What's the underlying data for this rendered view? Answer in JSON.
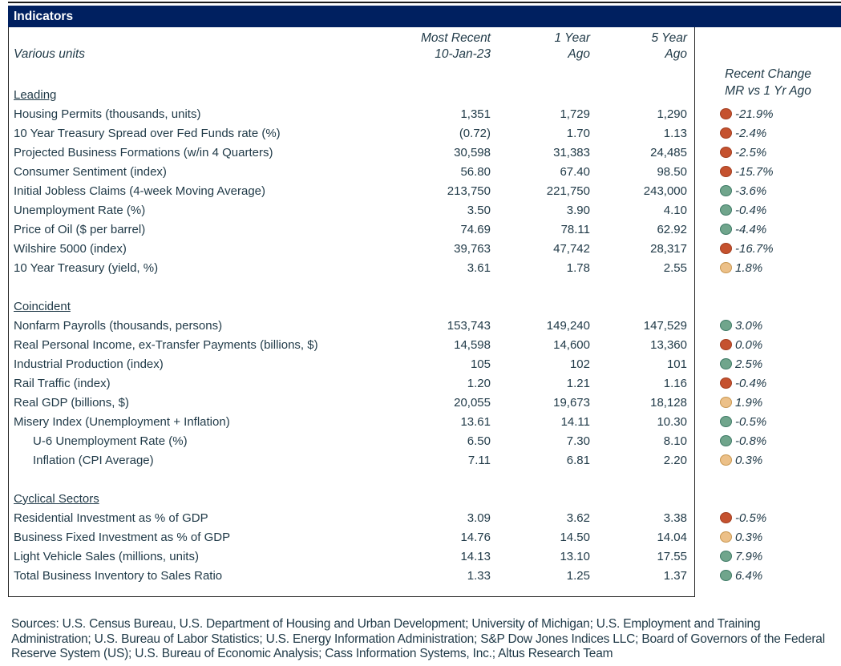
{
  "title": "Indicators",
  "header": {
    "units_label": "Various units",
    "col1_line1": "Most Recent",
    "col1_line2": "10-Jan-23",
    "col2_line1": "1 Year",
    "col2_line2": "Ago",
    "col3_line1": "5 Year",
    "col3_line2": "Ago",
    "change_line1": "Recent Change",
    "change_line2": "MR vs 1 Yr Ago"
  },
  "colors": {
    "header_bar": "#002060",
    "text": "#1f3947",
    "frame": "#262626"
  },
  "dot_colors": {
    "red": {
      "fill": "#c5522f",
      "stroke": "#a23d1f"
    },
    "green": {
      "fill": "#70a58c",
      "stroke": "#3e7a66"
    },
    "orange": {
      "fill": "#ecc088",
      "stroke": "#c8964f"
    }
  },
  "sections": [
    {
      "name": "Leading",
      "rows": [
        {
          "label": "Housing Permits (thousands, units)",
          "most_recent": "1,351",
          "one_year_ago": "1,729",
          "five_year_ago": "1,290",
          "dot": "red",
          "change": "-21.9%"
        },
        {
          "label": "10 Year Treasury Spread over Fed Funds rate (%)",
          "most_recent": "(0.72)",
          "one_year_ago": "1.70",
          "five_year_ago": "1.13",
          "dot": "red",
          "change": "-2.4%"
        },
        {
          "label": "Projected Business Formations (w/in 4 Quarters)",
          "most_recent": "30,598",
          "one_year_ago": "31,383",
          "five_year_ago": "24,485",
          "dot": "red",
          "change": "-2.5%"
        },
        {
          "label": "Consumer Sentiment (index)",
          "most_recent": "56.80",
          "one_year_ago": "67.40",
          "five_year_ago": "98.50",
          "dot": "red",
          "change": "-15.7%"
        },
        {
          "label": "Initial Jobless Claims (4-week Moving Average)",
          "most_recent": "213,750",
          "one_year_ago": "221,750",
          "five_year_ago": "243,000",
          "dot": "green",
          "change": "-3.6%"
        },
        {
          "label": "Unemployment Rate (%)",
          "most_recent": "3.50",
          "one_year_ago": "3.90",
          "five_year_ago": "4.10",
          "dot": "green",
          "change": "-0.4%"
        },
        {
          "label": "Price of Oil ($ per barrel)",
          "most_recent": "74.69",
          "one_year_ago": "78.11",
          "five_year_ago": "62.92",
          "dot": "green",
          "change": "-4.4%"
        },
        {
          "label": "Wilshire 5000 (index)",
          "most_recent": "39,763",
          "one_year_ago": "47,742",
          "five_year_ago": "28,317",
          "dot": "red",
          "change": "-16.7%"
        },
        {
          "label": "10 Year Treasury (yield, %)",
          "most_recent": "3.61",
          "one_year_ago": "1.78",
          "five_year_ago": "2.55",
          "dot": "orange",
          "change": "1.8%"
        }
      ]
    },
    {
      "name": "Coincident",
      "rows": [
        {
          "label": "Nonfarm Payrolls (thousands, persons)",
          "most_recent": "153,743",
          "one_year_ago": "149,240",
          "five_year_ago": "147,529",
          "dot": "green",
          "change": "3.0%"
        },
        {
          "label": "Real Personal Income, ex-Transfer Payments (billions, $)",
          "most_recent": "14,598",
          "one_year_ago": "14,600",
          "five_year_ago": "13,360",
          "dot": "red",
          "change": "0.0%"
        },
        {
          "label": "Industrial Production (index)",
          "most_recent": "105",
          "one_year_ago": "102",
          "five_year_ago": "101",
          "dot": "green",
          "change": "2.5%"
        },
        {
          "label": "Rail Traffic (index)",
          "most_recent": "1.20",
          "one_year_ago": "1.21",
          "five_year_ago": "1.16",
          "dot": "red",
          "change": "-0.4%"
        },
        {
          "label": "Real GDP (billions, $)",
          "most_recent": "20,055",
          "one_year_ago": "19,673",
          "five_year_ago": "18,128",
          "dot": "orange",
          "change": "1.9%"
        },
        {
          "label": "Misery Index (Unemployment + Inflation)",
          "most_recent": "13.61",
          "one_year_ago": "14.11",
          "five_year_ago": "10.30",
          "dot": "green",
          "change": "-0.5%"
        },
        {
          "label": "U-6 Unemployment Rate (%)",
          "indent": true,
          "most_recent": "6.50",
          "one_year_ago": "7.30",
          "five_year_ago": "8.10",
          "dot": "green",
          "change": "-0.8%"
        },
        {
          "label": "Inflation (CPI Average)",
          "indent": true,
          "most_recent": "7.11",
          "one_year_ago": "6.81",
          "five_year_ago": "2.20",
          "dot": "orange",
          "change": "0.3%"
        }
      ]
    },
    {
      "name": "Cyclical Sectors",
      "rows": [
        {
          "label": "Residential Investment as % of GDP",
          "most_recent": "3.09",
          "one_year_ago": "3.62",
          "five_year_ago": "3.38",
          "dot": "red",
          "change": "-0.5%"
        },
        {
          "label": "Business Fixed Investment as % of GDP",
          "most_recent": "14.76",
          "one_year_ago": "14.50",
          "five_year_ago": "14.04",
          "dot": "orange",
          "change": "0.3%"
        },
        {
          "label": "Light Vehicle Sales (millions, units)",
          "most_recent": "14.13",
          "one_year_ago": "13.10",
          "five_year_ago": "17.55",
          "dot": "green",
          "change": "7.9%"
        },
        {
          "label": "Total Business Inventory to Sales Ratio",
          "most_recent": "1.33",
          "one_year_ago": "1.25",
          "five_year_ago": "1.37",
          "dot": "green",
          "change": "6.4%"
        }
      ]
    }
  ],
  "footer": {
    "sources": "Sources: U.S. Census Bureau, U.S. Department of Housing and Urban Development; University of Michigan; U.S. Employment and Training Administration; U.S. Bureau of Labor Statistics; U.S. Energy Information Administration; S&P Dow Jones Indices LLC; Board of Governors of the Federal Reserve System (US); U.S. Bureau of Economic Analysis; Cass Information Systems, Inc.; Altus Research Team"
  }
}
